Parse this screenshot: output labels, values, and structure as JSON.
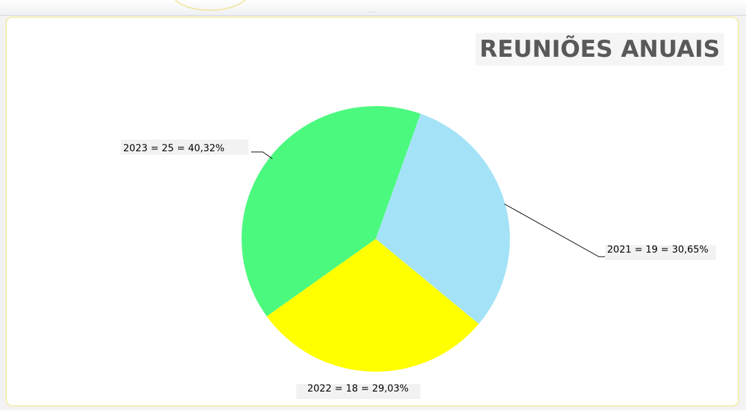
{
  "chart_data": {
    "type": "pie",
    "title": "REUNIÕES ANUAIS",
    "slices": [
      {
        "label": "2021 = 19 = 30,65%",
        "category": "2021",
        "value": 19,
        "percent": 30.65,
        "color": "#a4e3f7"
      },
      {
        "label": "2022 = 18 = 29,03%",
        "category": "2022",
        "value": 18,
        "percent": 29.03,
        "color": "#ffff00"
      },
      {
        "label": "2023 = 25 = 40,32%",
        "category": "2023",
        "value": 25,
        "percent": 40.32,
        "color": "#4cf97f"
      }
    ],
    "legend": "none",
    "label_placement": "outside-with-leader-lines"
  }
}
